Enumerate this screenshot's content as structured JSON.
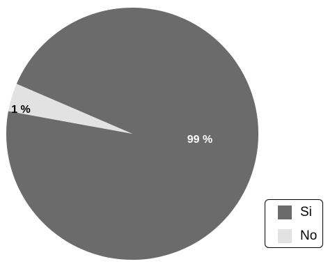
{
  "chart_data": {
    "type": "pie",
    "slices": [
      {
        "label": "Si",
        "value": 99,
        "display": "99 %",
        "color": "#6b6b6b",
        "label_color": "#ffffff"
      },
      {
        "label": "No",
        "value": 1,
        "display": "1 %",
        "color": "#e2e2e2",
        "label_color": "#000000"
      }
    ],
    "legend_position": "bottom-right",
    "border_color": "#000000"
  }
}
